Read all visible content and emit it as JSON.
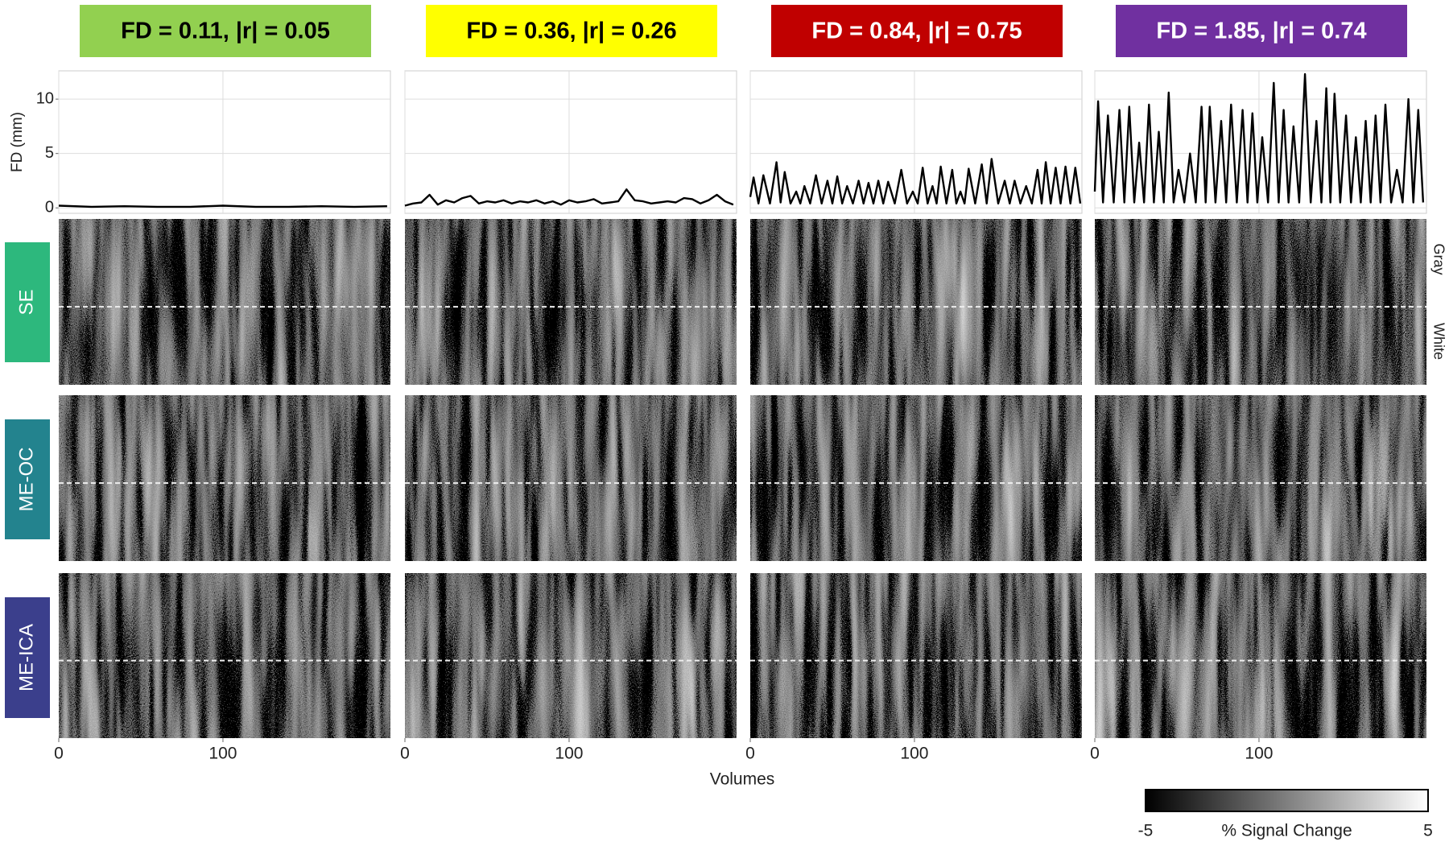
{
  "chart_data": [
    {
      "type": "line",
      "title": "FD = 0.11, |r| = 0.05",
      "title_color": "#92d050",
      "title_text_color": "#000000",
      "y_label": "FD (mm)",
      "color": "#000000",
      "x": [
        0,
        20,
        40,
        60,
        80,
        100,
        120,
        140,
        160,
        180,
        200
      ],
      "values": [
        0.2,
        0.1,
        0.15,
        0.1,
        0.1,
        0.2,
        0.1,
        0.1,
        0.15,
        0.1,
        0.15
      ],
      "xlim": [
        0,
        202
      ],
      "xticks": [
        0,
        100
      ],
      "ylim": [
        -0.5,
        12.6
      ],
      "yticks": [
        0,
        5,
        10
      ],
      "grid": true
    },
    {
      "type": "line",
      "title": "FD = 0.36, |r| = 0.26",
      "title_color": "#ffff00",
      "title_text_color": "#000000",
      "color": "#000000",
      "x": [
        0,
        5,
        10,
        15,
        20,
        25,
        30,
        35,
        40,
        45,
        50,
        55,
        60,
        65,
        70,
        75,
        80,
        85,
        90,
        95,
        100,
        105,
        110,
        115,
        120,
        125,
        130,
        135,
        140,
        145,
        150,
        155,
        160,
        165,
        170,
        175,
        180,
        185,
        190,
        195,
        200
      ],
      "values": [
        0.2,
        0.4,
        0.5,
        1.2,
        0.3,
        0.7,
        0.5,
        0.9,
        1.1,
        0.4,
        0.6,
        0.5,
        0.7,
        0.4,
        0.6,
        0.5,
        0.7,
        0.4,
        0.6,
        0.3,
        0.7,
        0.5,
        0.6,
        0.8,
        0.4,
        0.5,
        0.6,
        1.7,
        0.7,
        0.6,
        0.4,
        0.5,
        0.6,
        0.5,
        0.9,
        0.8,
        0.4,
        0.7,
        1.2,
        0.6,
        0.3
      ],
      "xlim": [
        0,
        202
      ],
      "xticks": [
        0,
        100
      ],
      "ylim": [
        -0.5,
        12.6
      ],
      "yticks": [
        0,
        5,
        10
      ],
      "grid": true
    },
    {
      "type": "line",
      "title": "FD = 0.84, |r| = 0.75",
      "title_color": "#c00000",
      "title_text_color": "#ffffff",
      "color": "#000000",
      "x": [
        0,
        2,
        5,
        8,
        12,
        16,
        18.5,
        21,
        24.5,
        28,
        30.5,
        33,
        36.5,
        40,
        43.5,
        47,
        50,
        53,
        56,
        59,
        62.5,
        66,
        69,
        72,
        75,
        78,
        81,
        84,
        88,
        92,
        95.5,
        99,
        102,
        105,
        108,
        111,
        113.5,
        116,
        119.5,
        123,
        125.5,
        128,
        130.5,
        133,
        137,
        141,
        144,
        147,
        151,
        155,
        158,
        161,
        164.5,
        168,
        171.5,
        175,
        177.5,
        180,
        183,
        186,
        189,
        192,
        195,
        198,
        201
      ],
      "values": [
        1.0,
        2.8,
        0.4,
        3.0,
        0.4,
        4.2,
        0.5,
        3.3,
        0.4,
        1.5,
        0.4,
        2.0,
        0.4,
        3.0,
        0.4,
        2.5,
        0.4,
        2.9,
        0.4,
        2.0,
        0.4,
        2.5,
        0.4,
        2.3,
        0.4,
        2.5,
        0.4,
        2.4,
        0.4,
        3.5,
        0.4,
        1.5,
        0.4,
        3.7,
        0.4,
        2.0,
        0.4,
        3.8,
        0.4,
        3.5,
        0.4,
        1.5,
        0.4,
        3.6,
        0.4,
        4.0,
        0.4,
        4.5,
        0.4,
        2.5,
        0.4,
        2.5,
        0.4,
        2.0,
        0.4,
        3.5,
        0.4,
        4.2,
        0.4,
        3.7,
        0.4,
        3.8,
        0.4,
        3.7,
        0.4
      ],
      "xlim": [
        0,
        202
      ],
      "xticks": [
        0,
        100
      ],
      "ylim": [
        -0.5,
        12.6
      ],
      "yticks": [
        0,
        5,
        10
      ],
      "grid": true
    },
    {
      "type": "line",
      "title": "FD = 1.85, |r| = 0.74",
      "title_color": "#7030a0",
      "title_text_color": "#ffffff",
      "color": "#000000",
      "x": [
        0,
        2,
        5,
        8,
        11.5,
        15,
        18,
        21,
        24,
        27,
        30,
        33,
        36,
        39,
        42,
        45,
        48,
        51,
        54.5,
        58,
        61.5,
        65,
        67.5,
        70,
        73.5,
        77,
        80,
        83,
        86.5,
        90,
        93,
        96,
        99,
        102,
        105.5,
        109,
        112,
        115,
        118,
        121,
        124.5,
        128,
        131.5,
        135,
        138,
        141,
        143.5,
        146,
        149.5,
        153,
        156,
        159,
        162,
        165,
        168,
        171,
        174,
        177,
        180.5,
        184,
        187.5,
        191,
        194,
        197,
        200
      ],
      "values": [
        1.5,
        9.8,
        0.5,
        8.5,
        0.5,
        9.0,
        0.5,
        9.3,
        0.5,
        6.0,
        0.5,
        9.5,
        0.5,
        7.0,
        0.5,
        10.6,
        0.5,
        3.5,
        0.5,
        5.0,
        0.5,
        9.3,
        0.5,
        9.3,
        0.5,
        8.0,
        0.5,
        9.5,
        0.5,
        9.0,
        0.5,
        8.7,
        0.5,
        6.5,
        0.5,
        11.5,
        0.5,
        9.0,
        0.5,
        7.5,
        0.5,
        12.3,
        0.5,
        8.0,
        0.5,
        11.0,
        0.5,
        10.5,
        0.5,
        8.5,
        0.5,
        6.5,
        0.5,
        8.0,
        0.5,
        8.5,
        0.5,
        9.5,
        0.5,
        3.5,
        0.5,
        10.0,
        0.5,
        9.0,
        0.5
      ],
      "xlim": [
        0,
        202
      ],
      "xticks": [
        0,
        100
      ],
      "ylim": [
        -0.5,
        12.6
      ],
      "yticks": [
        0,
        5,
        10
      ],
      "grid": true
    }
  ],
  "row_labels": [
    {
      "text": "SE",
      "color": "#2db87d"
    },
    {
      "text": "ME-OC",
      "color": "#23838e"
    },
    {
      "text": "ME-ICA",
      "color": "#3b3f8c"
    }
  ],
  "tissue_labels": [
    "Gray",
    "White"
  ],
  "x_label": "Volumes",
  "colorbar": {
    "label": "% Signal Change",
    "lim": [
      -5,
      5
    ],
    "ticks": [
      -5,
      5
    ]
  }
}
